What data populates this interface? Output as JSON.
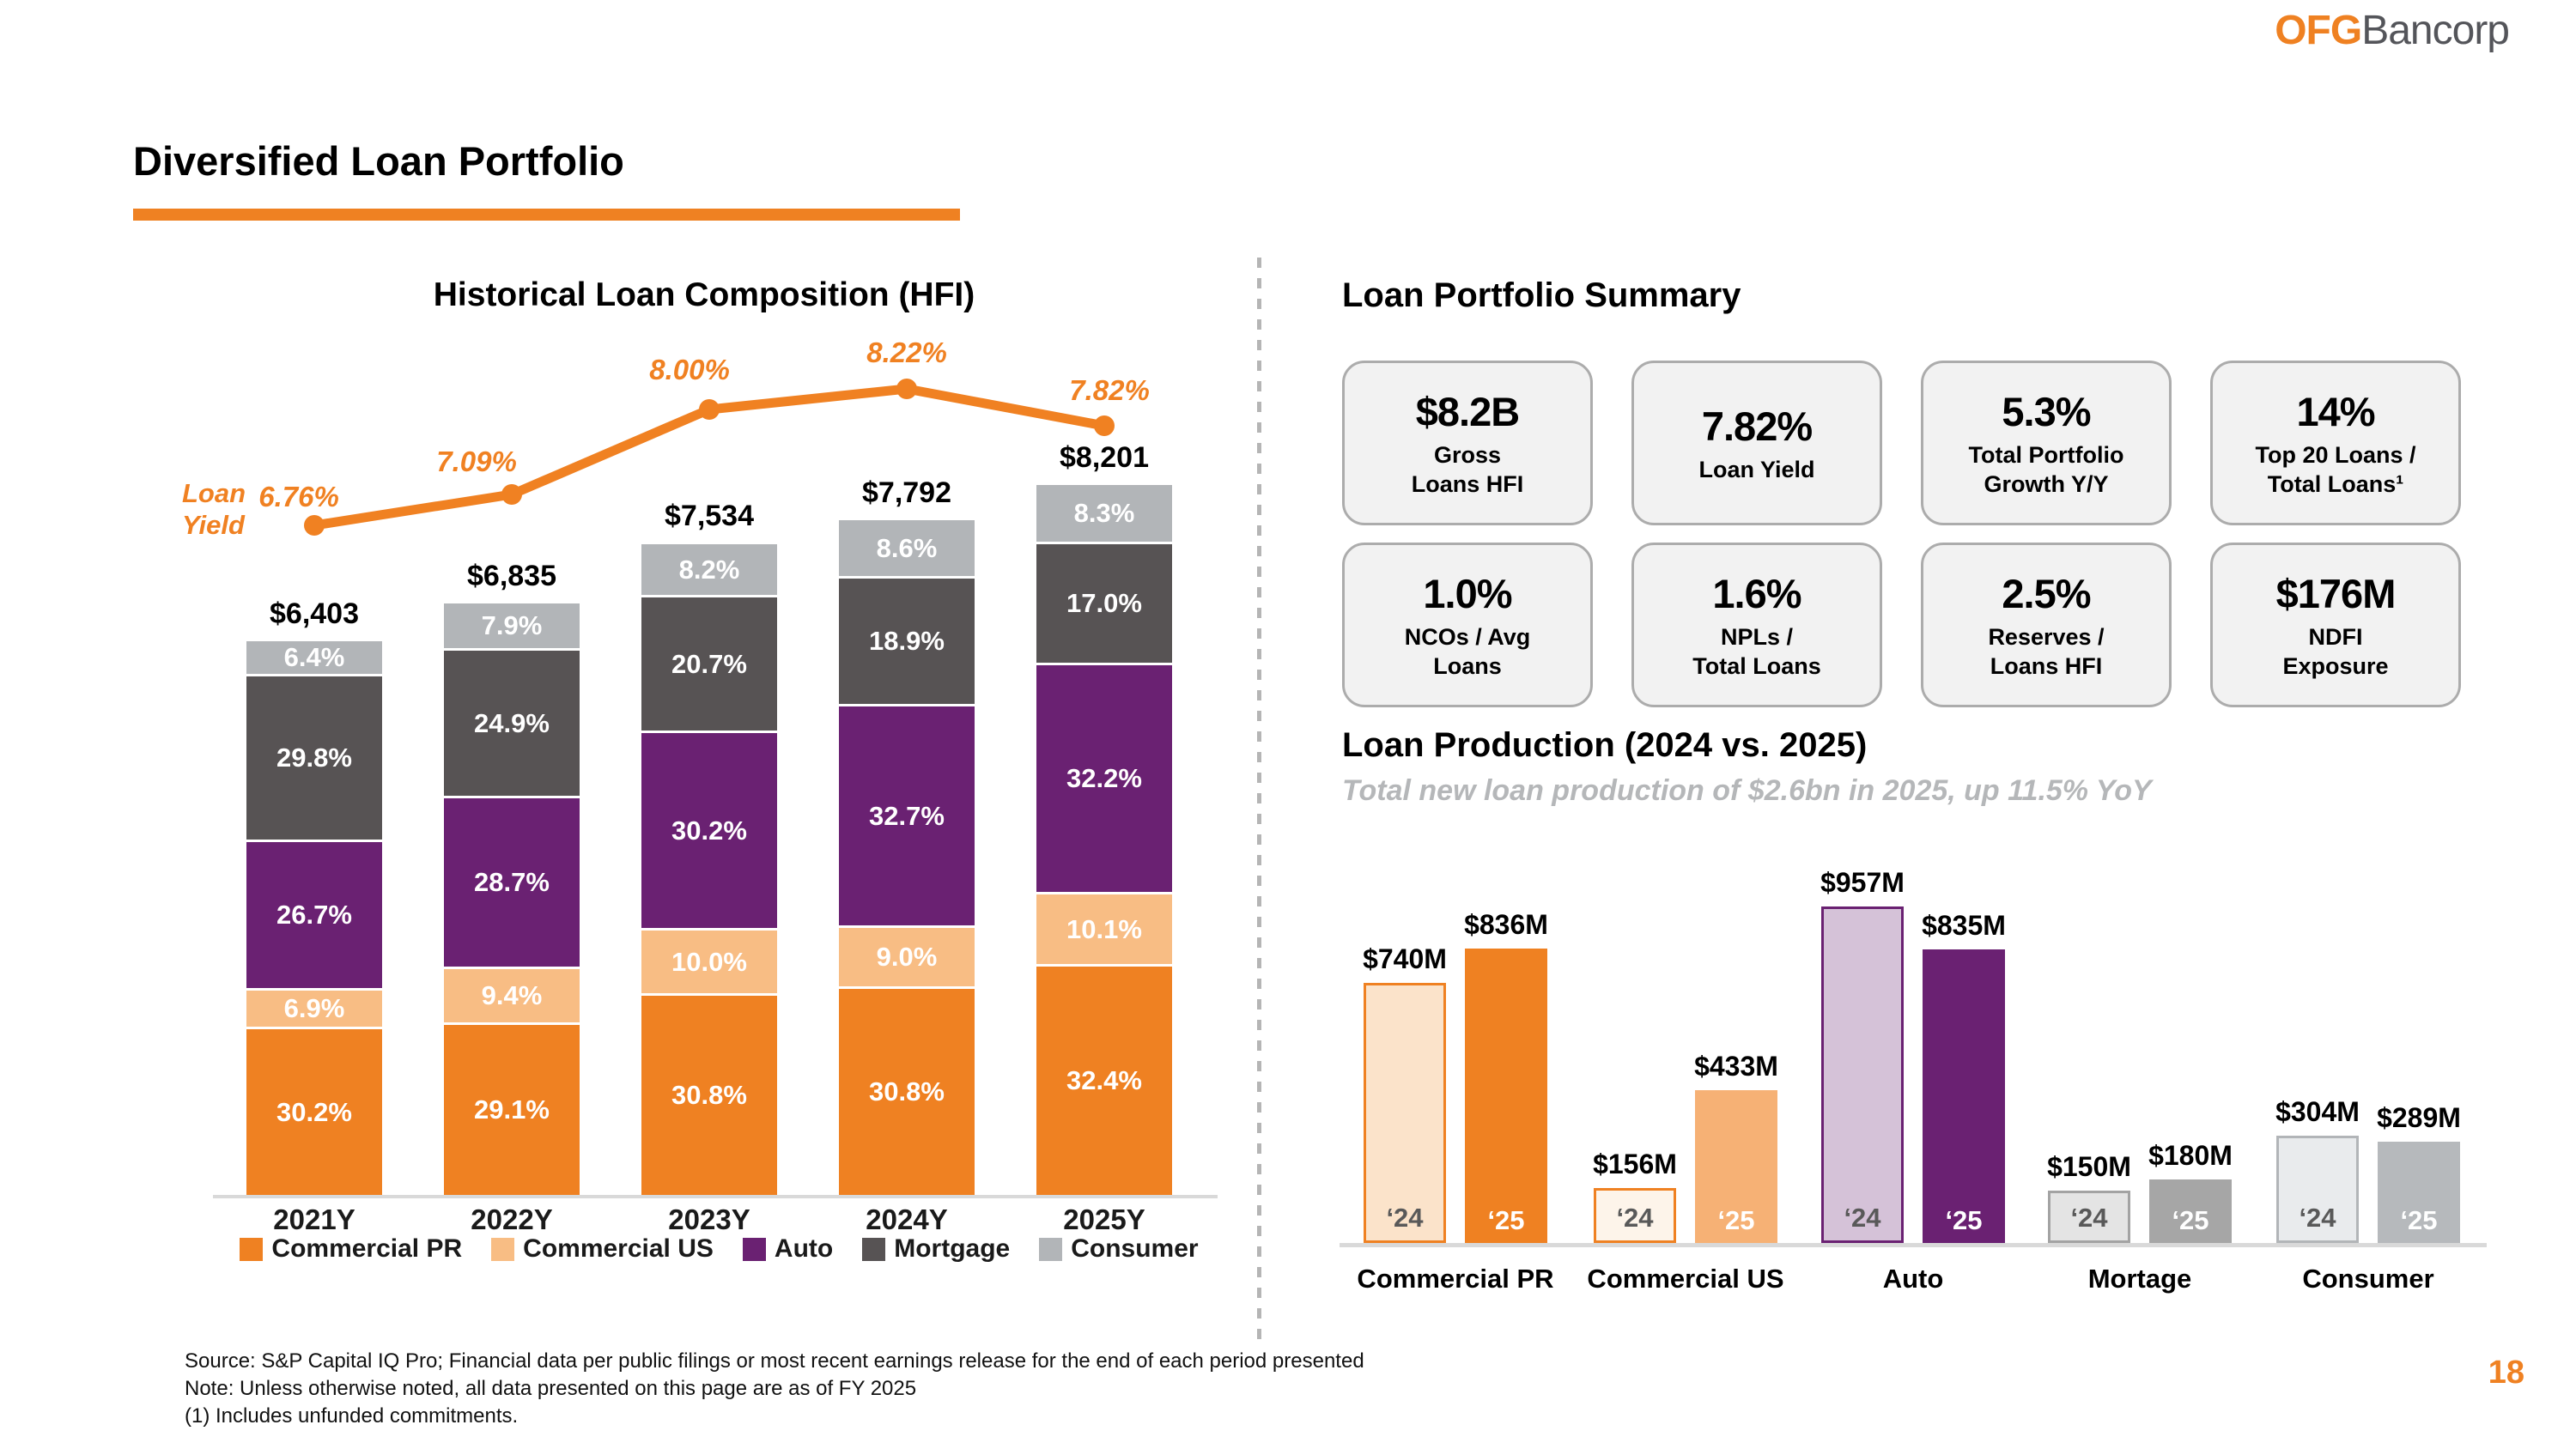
{
  "logo": {
    "part1": "OFG",
    "part2": "Bancorp"
  },
  "slide": {
    "title": "Diversified Loan Portfolio",
    "page_number": "18"
  },
  "accent_color": "#EF8122",
  "chart_data": [
    {
      "type": "bar",
      "id": "historical_loan_composition",
      "title": "Historical Loan Composition (HFI)",
      "stacked": true,
      "unit": "percent of total, totals in $M",
      "categories": [
        "2021Y",
        "2022Y",
        "2023Y",
        "2024Y",
        "2025Y"
      ],
      "totals": [
        6403,
        6835,
        7534,
        7792,
        8201
      ],
      "total_labels": [
        "$6,403",
        "$6,835",
        "$7,534",
        "$7,792",
        "$8,201"
      ],
      "series": [
        {
          "name": "Commercial PR",
          "color": "#EF8122",
          "values_pct": [
            30.2,
            29.1,
            30.8,
            30.8,
            32.4
          ],
          "labels": [
            "30.2%",
            "29.1%",
            "30.8%",
            "30.8%",
            "32.4%"
          ]
        },
        {
          "name": "Commercial US",
          "color": "#F8BD84",
          "values_pct": [
            6.9,
            9.4,
            10.0,
            9.0,
            10.1
          ],
          "labels": [
            "6.9%",
            "9.4%",
            "10.0%",
            "9.0%",
            "10.1%"
          ]
        },
        {
          "name": "Auto",
          "color": "#6A2172",
          "values_pct": [
            26.7,
            28.7,
            30.2,
            32.7,
            32.2
          ],
          "labels": [
            "26.7%",
            "28.7%",
            "30.2%",
            "32.7%",
            "32.2%"
          ]
        },
        {
          "name": "Mortgage",
          "color": "#575354",
          "values_pct": [
            29.8,
            24.9,
            20.7,
            18.9,
            17.0
          ],
          "labels": [
            "29.8%",
            "24.9%",
            "20.7%",
            "18.9%",
            "17.0%"
          ]
        },
        {
          "name": "Consumer",
          "color": "#B2B5B8",
          "values_pct": [
            6.4,
            7.9,
            8.2,
            8.6,
            8.3
          ],
          "labels": [
            "6.4%",
            "7.9%",
            "8.2%",
            "8.6%",
            "8.3%"
          ]
        }
      ],
      "line_series": {
        "name": "Loan Yield",
        "color": "#F08122",
        "values_pct": [
          6.76,
          7.09,
          8.0,
          8.22,
          7.82
        ],
        "labels": [
          "6.76%",
          "7.09%",
          "8.00%",
          "8.22%",
          "7.82%"
        ]
      },
      "legend": [
        "Commercial PR",
        "Commercial US",
        "Auto",
        "Mortgage",
        "Consumer"
      ],
      "legend_position": "bottom",
      "grid": false
    },
    {
      "type": "bar",
      "id": "loan_production",
      "title": "Loan Production (2024 vs. 2025)",
      "subtitle": "Total new loan production of $2.6bn in 2025, up 11.5% YoY",
      "unit": "$M",
      "categories": [
        "Commercial PR",
        "Commercial US",
        "Auto",
        "Mortage",
        "Consumer"
      ],
      "series": [
        {
          "name": "‘24",
          "values": [
            740,
            156,
            957,
            150,
            304
          ],
          "labels": [
            "$740M",
            "$156M",
            "$957M",
            "$150M",
            "$304M"
          ]
        },
        {
          "name": "‘25",
          "values": [
            836,
            433,
            835,
            180,
            289
          ],
          "labels": [
            "$836M",
            "$433M",
            "$835M",
            "$180M",
            "$289M"
          ]
        }
      ],
      "ylim": [
        0,
        957
      ],
      "grid": false,
      "category_styles": [
        {
          "fill24": "#FBE3CA",
          "border24": "#EF8122",
          "fill25": "#EF8122"
        },
        {
          "fill24": "#FDF4EA",
          "border24": "#EF8122",
          "fill25": "#F6B175"
        },
        {
          "fill24": "#D5C2D8",
          "border24": "#6A2172",
          "fill25": "#6A2172"
        },
        {
          "fill24": "#E4E4E4",
          "border24": "#A3A3A3",
          "fill25": "#A6A6A6"
        },
        {
          "fill24": "#E9EBED",
          "border24": "#B2B5B8",
          "fill25": "#B6B9BC"
        }
      ],
      "label24_color": "#595959",
      "label25_color": "#FFFFFF"
    }
  ],
  "summary": {
    "title": "Loan Portfolio Summary",
    "cards": [
      {
        "value": "$8.2B",
        "label_lines": [
          "Gross",
          "Loans HFI"
        ]
      },
      {
        "value": "7.82%",
        "label_lines": [
          "Loan Yield"
        ]
      },
      {
        "value": "5.3%",
        "label_lines": [
          "Total Portfolio",
          "Growth Y/Y"
        ]
      },
      {
        "value": "14%",
        "label_lines": [
          "Top 20 Loans /",
          "Total Loans¹"
        ]
      },
      {
        "value": "1.0%",
        "label_lines": [
          "NCOs / Avg",
          "Loans"
        ]
      },
      {
        "value": "1.6%",
        "label_lines": [
          "NPLs /",
          "Total Loans"
        ]
      },
      {
        "value": "2.5%",
        "label_lines": [
          "Reserves /",
          "Loans HFI"
        ]
      },
      {
        "value": "$176M",
        "label_lines": [
          "NDFI",
          "Exposure"
        ]
      }
    ]
  },
  "footer": {
    "source": "Source: S&P Capital IQ Pro; Financial data per public filings or most recent earnings release for the end of each period presented",
    "note": "Note: Unless otherwise noted, all data presented on this page are as of FY 2025",
    "footnote": "(1) Includes unfunded commitments."
  }
}
